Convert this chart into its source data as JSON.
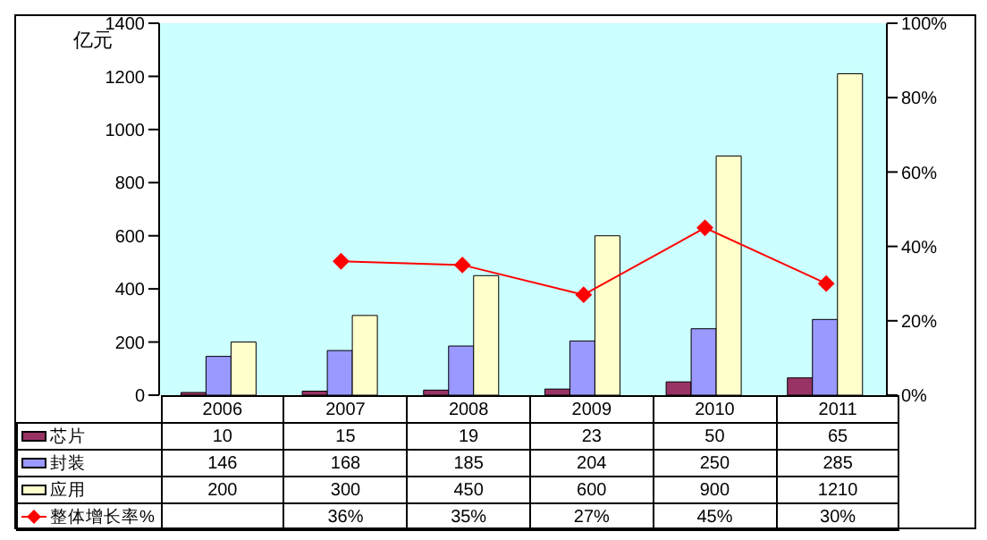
{
  "chart_data": {
    "type": "bar",
    "ylabel": "亿元",
    "categories": [
      "2006",
      "2007",
      "2008",
      "2009",
      "2010",
      "2011"
    ],
    "series": [
      {
        "name": "芯片",
        "color": "#993366",
        "values": [
          10,
          15,
          19,
          23,
          50,
          65
        ],
        "value_labels": [
          "10",
          "15",
          "19",
          "23",
          "50",
          "65"
        ]
      },
      {
        "name": "封装",
        "color": "#9999ff",
        "values": [
          146,
          168,
          185,
          204,
          250,
          285
        ],
        "value_labels": [
          "146",
          "168",
          "185",
          "204",
          "250",
          "285"
        ]
      },
      {
        "name": "应用",
        "color": "#ffffcc",
        "values": [
          200,
          300,
          450,
          600,
          900,
          1210
        ],
        "value_labels": [
          "200",
          "300",
          "450",
          "600",
          "900",
          "1210"
        ]
      },
      {
        "name": "整体增长率%",
        "type": "line",
        "axis": "y2",
        "color": "#ff0000",
        "marker": "diamond",
        "values": [
          null,
          36,
          35,
          27,
          45,
          30
        ],
        "value_labels": [
          null,
          "36%",
          "35%",
          "27%",
          "45%",
          "30%"
        ]
      }
    ],
    "ylim": [
      0,
      1400
    ],
    "yticks": [
      0,
      200,
      400,
      600,
      800,
      1000,
      1200,
      1400
    ],
    "y2lim": [
      0,
      100
    ],
    "y2ticks": [
      {
        "value": 0,
        "label": "0%"
      },
      {
        "value": 20,
        "label": "20%"
      },
      {
        "value": 40,
        "label": "40%"
      },
      {
        "value": 60,
        "label": "60%"
      },
      {
        "value": 80,
        "label": "80%"
      },
      {
        "value": 100,
        "label": "100%"
      }
    ],
    "tick_labels": "y",
    "grid": false,
    "legend": "bottom"
  }
}
